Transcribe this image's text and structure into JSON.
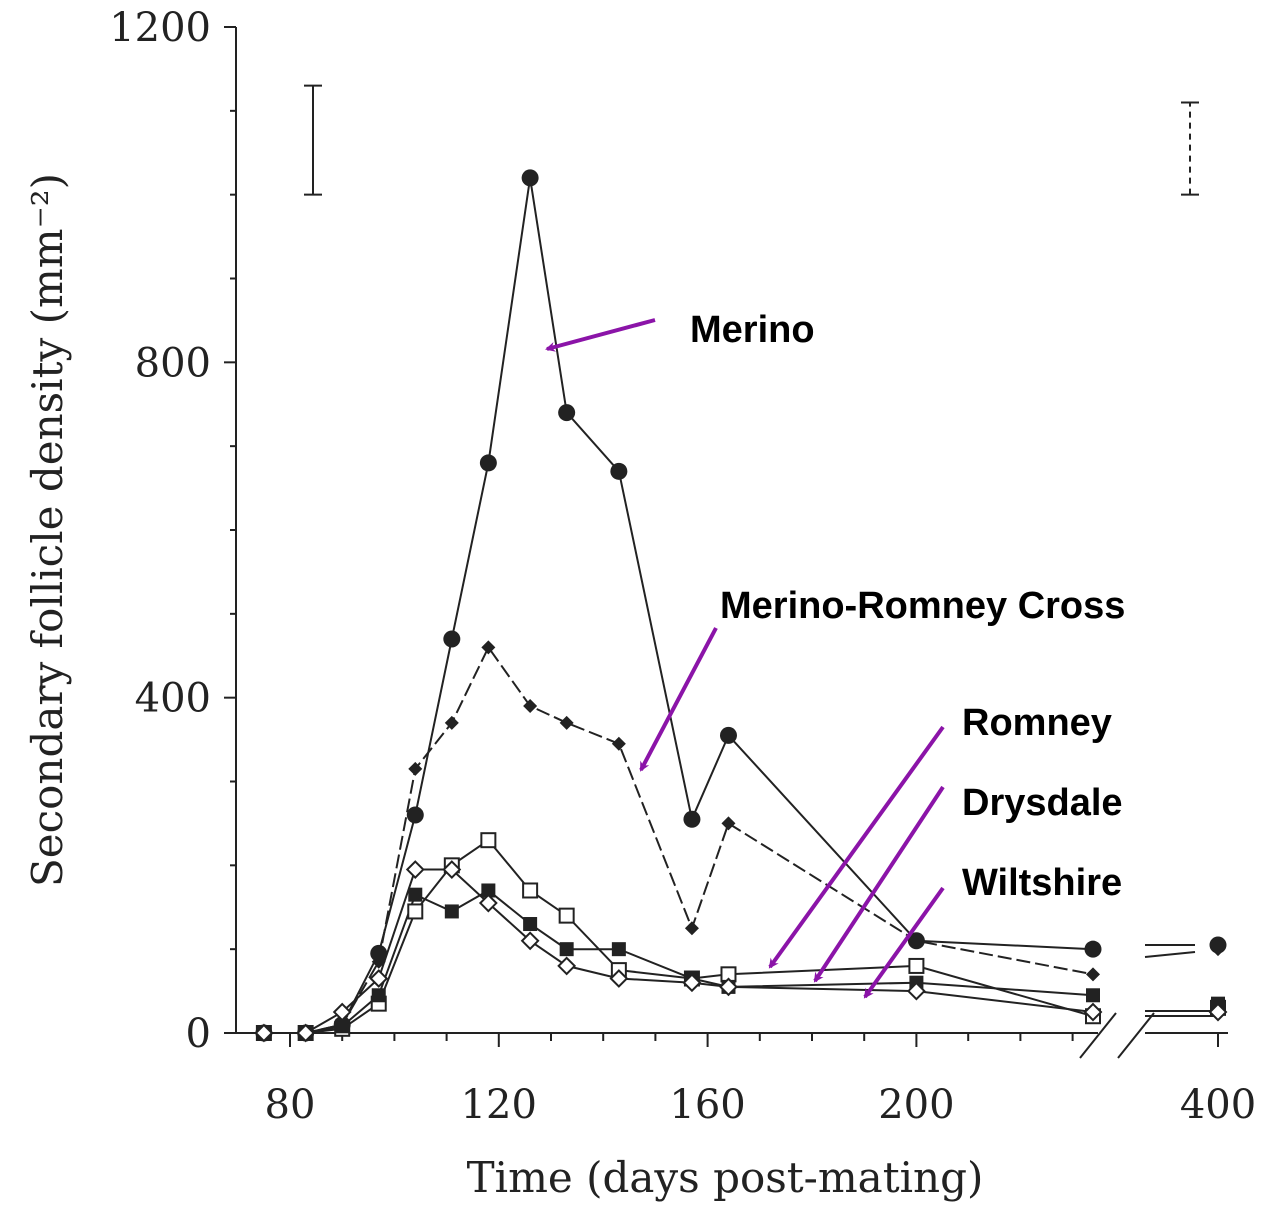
{
  "chart_data": {
    "type": "line",
    "xlabel": "Time (days post-mating)",
    "ylabel": "Secondary follicle density (mm⁻²)",
    "ylim": [
      0,
      1200
    ],
    "yticks": [
      0,
      400,
      800,
      1200
    ],
    "xticks": [
      "80",
      "120",
      "160",
      "200",
      "400"
    ],
    "x_axis_break": "between 200 and 400",
    "grid": false,
    "series": [
      {
        "name": "Merino",
        "marker": "filled-circle",
        "line_style": "solid",
        "points": [
          [
            75,
            0
          ],
          [
            83,
            0
          ],
          [
            90,
            10
          ],
          [
            97,
            95
          ],
          [
            104,
            260
          ],
          [
            111,
            470
          ],
          [
            118,
            680
          ],
          [
            126,
            1020
          ],
          [
            133,
            740
          ],
          [
            143,
            670
          ],
          [
            157,
            255
          ],
          [
            164,
            355
          ],
          [
            200,
            110
          ],
          [
            228,
            100
          ],
          [
            400,
            105
          ]
        ]
      },
      {
        "name": "Merino-Romney Cross",
        "marker": "filled-diamond",
        "line_style": "dashed",
        "points": [
          [
            75,
            0
          ],
          [
            83,
            0
          ],
          [
            90,
            10
          ],
          [
            97,
            85
          ],
          [
            104,
            315
          ],
          [
            111,
            370
          ],
          [
            118,
            460
          ],
          [
            126,
            390
          ],
          [
            133,
            370
          ],
          [
            143,
            345
          ],
          [
            157,
            125
          ],
          [
            164,
            250
          ],
          [
            200,
            110
          ],
          [
            228,
            70
          ],
          [
            400,
            100
          ]
        ]
      },
      {
        "name": "Romney",
        "marker": "open-square",
        "line_style": "solid",
        "points": [
          [
            75,
            0
          ],
          [
            83,
            0
          ],
          [
            90,
            5
          ],
          [
            97,
            35
          ],
          [
            104,
            145
          ],
          [
            111,
            200
          ],
          [
            118,
            230
          ],
          [
            126,
            170
          ],
          [
            133,
            140
          ],
          [
            143,
            75
          ],
          [
            157,
            65
          ],
          [
            164,
            70
          ],
          [
            200,
            80
          ],
          [
            228,
            20
          ],
          [
            400,
            30
          ]
        ]
      },
      {
        "name": "Drysdale",
        "marker": "filled-square",
        "line_style": "solid",
        "points": [
          [
            75,
            0
          ],
          [
            83,
            0
          ],
          [
            90,
            8
          ],
          [
            97,
            45
          ],
          [
            104,
            165
          ],
          [
            111,
            145
          ],
          [
            118,
            170
          ],
          [
            126,
            130
          ],
          [
            133,
            100
          ],
          [
            143,
            100
          ],
          [
            157,
            65
          ],
          [
            164,
            55
          ],
          [
            200,
            60
          ],
          [
            228,
            45
          ],
          [
            400,
            35
          ]
        ]
      },
      {
        "name": "Wiltshire",
        "marker": "open-diamond",
        "line_style": "solid",
        "points": [
          [
            75,
            0
          ],
          [
            83,
            0
          ],
          [
            90,
            25
          ],
          [
            97,
            65
          ],
          [
            104,
            195
          ],
          [
            111,
            195
          ],
          [
            118,
            155
          ],
          [
            126,
            110
          ],
          [
            133,
            80
          ],
          [
            143,
            65
          ],
          [
            157,
            60
          ],
          [
            164,
            55
          ],
          [
            200,
            50
          ],
          [
            228,
            25
          ],
          [
            400,
            25
          ]
        ]
      }
    ],
    "error_bars": [
      {
        "position": "top-left",
        "style": "solid",
        "y_low": 1000,
        "y_high": 1130
      },
      {
        "position": "top-right",
        "style": "dashed",
        "y_low": 1000,
        "y_high": 1110
      }
    ],
    "annotations": [
      {
        "label": "Merino",
        "color": "#8b14a8"
      },
      {
        "label": "Merino-Romney Cross",
        "color": "#8b14a8"
      },
      {
        "label": "Romney",
        "color": "#8b14a8"
      },
      {
        "label": "Drysdale",
        "color": "#8b14a8"
      },
      {
        "label": "Wiltshire",
        "color": "#8b14a8"
      }
    ],
    "line_color": "#222222"
  }
}
